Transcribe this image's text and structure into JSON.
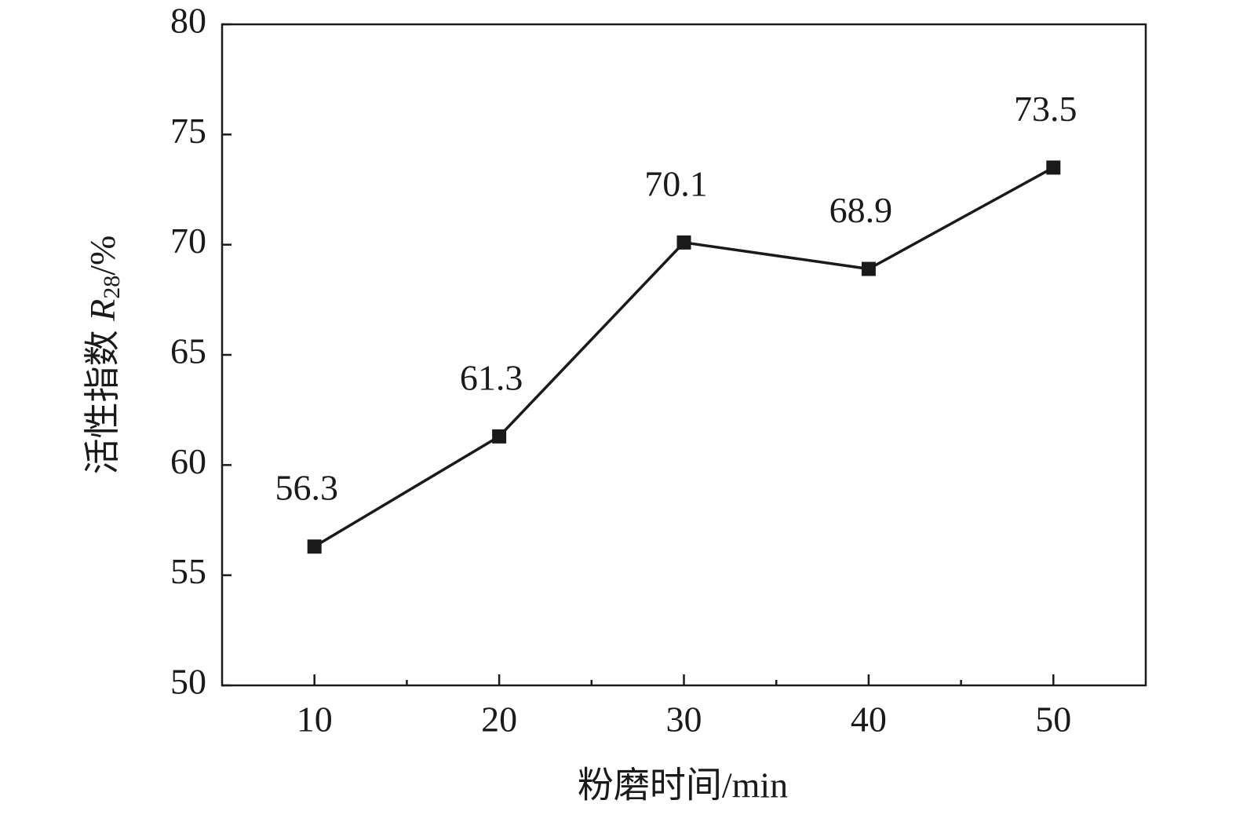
{
  "chart_data": {
    "type": "line",
    "xlabel": "粉磨时间/min",
    "ylabel": {
      "text": "活性指数 ",
      "symbol": "R",
      "subscript": "28",
      "unit": "/%"
    },
    "x": [
      10,
      20,
      30,
      40,
      50
    ],
    "values": [
      56.3,
      61.3,
      70.1,
      68.9,
      73.5
    ],
    "color": "#1a1a1a",
    "xlim": [
      5,
      55
    ],
    "xticks": [
      10,
      20,
      30,
      40,
      50
    ],
    "xminorticks": [
      15,
      25,
      35,
      45
    ],
    "ylim": [
      50,
      80
    ],
    "yticks": [
      50,
      55,
      60,
      65,
      70,
      75,
      80
    ],
    "grid": false
  }
}
